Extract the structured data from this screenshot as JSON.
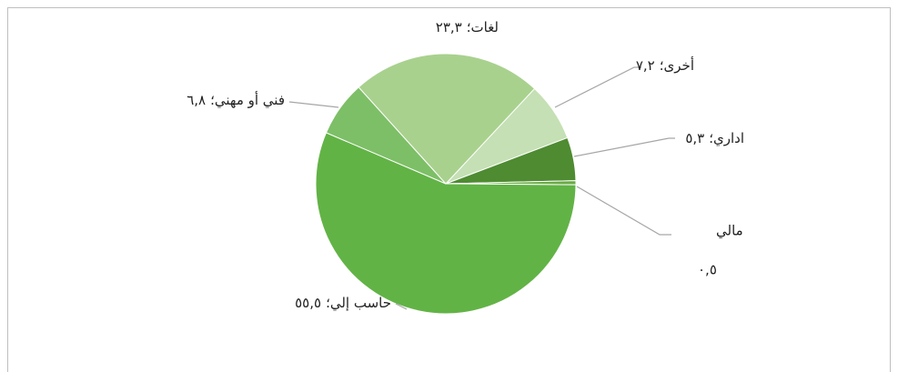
{
  "chart_data": {
    "type": "pie",
    "categories": [
      "أخرى",
      "اداري",
      "مالي",
      "حاسب إلي",
      "فني أو مهني",
      "لغات"
    ],
    "values": [
      7.2,
      5.3,
      0.5,
      55.5,
      6.8,
      23.3
    ],
    "value_labels": [
      "٧,٢",
      "٥,٣",
      "٠,٥",
      "٥٥,٥",
      "٦,٨",
      "٢٣,٣"
    ],
    "label_separator": "؛",
    "colors": [
      "#c5e0b4",
      "#4e8b31",
      "#6aaa45",
      "#62b346",
      "#7dbf67",
      "#a9d18e"
    ]
  }
}
